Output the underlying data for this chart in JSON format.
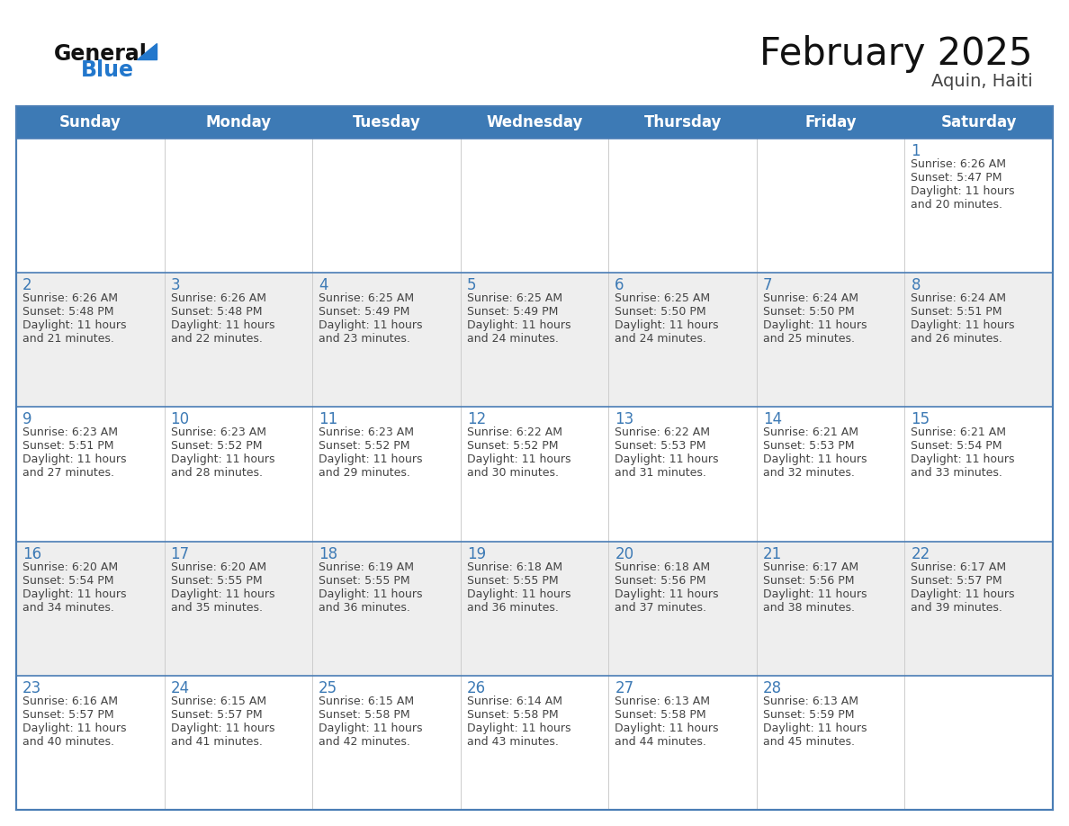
{
  "title": "February 2025",
  "subtitle": "Aquin, Haiti",
  "days_of_week": [
    "Sunday",
    "Monday",
    "Tuesday",
    "Wednesday",
    "Thursday",
    "Friday",
    "Saturday"
  ],
  "header_bg": "#3d7ab5",
  "header_text_color": "#ffffff",
  "cell_bg_odd": "#ffffff",
  "cell_bg_even": "#eeeeee",
  "row_border_color": "#4a7db5",
  "col_border_color": "#cccccc",
  "outer_border_color": "#4a7db5",
  "text_color": "#444444",
  "day_num_color": "#3d7ab5",
  "title_color": "#111111",
  "subtitle_color": "#444444",
  "logo_general_color": "#111111",
  "logo_blue_color": "#2277cc",
  "weeks": [
    [
      {
        "day": null,
        "sunrise": null,
        "sunset": null,
        "daylight": null
      },
      {
        "day": null,
        "sunrise": null,
        "sunset": null,
        "daylight": null
      },
      {
        "day": null,
        "sunrise": null,
        "sunset": null,
        "daylight": null
      },
      {
        "day": null,
        "sunrise": null,
        "sunset": null,
        "daylight": null
      },
      {
        "day": null,
        "sunrise": null,
        "sunset": null,
        "daylight": null
      },
      {
        "day": null,
        "sunrise": null,
        "sunset": null,
        "daylight": null
      },
      {
        "day": 1,
        "sunrise": "6:26 AM",
        "sunset": "5:47 PM",
        "daylight": "11 hours and 20 minutes."
      }
    ],
    [
      {
        "day": 2,
        "sunrise": "6:26 AM",
        "sunset": "5:48 PM",
        "daylight": "11 hours and 21 minutes."
      },
      {
        "day": 3,
        "sunrise": "6:26 AM",
        "sunset": "5:48 PM",
        "daylight": "11 hours and 22 minutes."
      },
      {
        "day": 4,
        "sunrise": "6:25 AM",
        "sunset": "5:49 PM",
        "daylight": "11 hours and 23 minutes."
      },
      {
        "day": 5,
        "sunrise": "6:25 AM",
        "sunset": "5:49 PM",
        "daylight": "11 hours and 24 minutes."
      },
      {
        "day": 6,
        "sunrise": "6:25 AM",
        "sunset": "5:50 PM",
        "daylight": "11 hours and 24 minutes."
      },
      {
        "day": 7,
        "sunrise": "6:24 AM",
        "sunset": "5:50 PM",
        "daylight": "11 hours and 25 minutes."
      },
      {
        "day": 8,
        "sunrise": "6:24 AM",
        "sunset": "5:51 PM",
        "daylight": "11 hours and 26 minutes."
      }
    ],
    [
      {
        "day": 9,
        "sunrise": "6:23 AM",
        "sunset": "5:51 PM",
        "daylight": "11 hours and 27 minutes."
      },
      {
        "day": 10,
        "sunrise": "6:23 AM",
        "sunset": "5:52 PM",
        "daylight": "11 hours and 28 minutes."
      },
      {
        "day": 11,
        "sunrise": "6:23 AM",
        "sunset": "5:52 PM",
        "daylight": "11 hours and 29 minutes."
      },
      {
        "day": 12,
        "sunrise": "6:22 AM",
        "sunset": "5:52 PM",
        "daylight": "11 hours and 30 minutes."
      },
      {
        "day": 13,
        "sunrise": "6:22 AM",
        "sunset": "5:53 PM",
        "daylight": "11 hours and 31 minutes."
      },
      {
        "day": 14,
        "sunrise": "6:21 AM",
        "sunset": "5:53 PM",
        "daylight": "11 hours and 32 minutes."
      },
      {
        "day": 15,
        "sunrise": "6:21 AM",
        "sunset": "5:54 PM",
        "daylight": "11 hours and 33 minutes."
      }
    ],
    [
      {
        "day": 16,
        "sunrise": "6:20 AM",
        "sunset": "5:54 PM",
        "daylight": "11 hours and 34 minutes."
      },
      {
        "day": 17,
        "sunrise": "6:20 AM",
        "sunset": "5:55 PM",
        "daylight": "11 hours and 35 minutes."
      },
      {
        "day": 18,
        "sunrise": "6:19 AM",
        "sunset": "5:55 PM",
        "daylight": "11 hours and 36 minutes."
      },
      {
        "day": 19,
        "sunrise": "6:18 AM",
        "sunset": "5:55 PM",
        "daylight": "11 hours and 36 minutes."
      },
      {
        "day": 20,
        "sunrise": "6:18 AM",
        "sunset": "5:56 PM",
        "daylight": "11 hours and 37 minutes."
      },
      {
        "day": 21,
        "sunrise": "6:17 AM",
        "sunset": "5:56 PM",
        "daylight": "11 hours and 38 minutes."
      },
      {
        "day": 22,
        "sunrise": "6:17 AM",
        "sunset": "5:57 PM",
        "daylight": "11 hours and 39 minutes."
      }
    ],
    [
      {
        "day": 23,
        "sunrise": "6:16 AM",
        "sunset": "5:57 PM",
        "daylight": "11 hours and 40 minutes."
      },
      {
        "day": 24,
        "sunrise": "6:15 AM",
        "sunset": "5:57 PM",
        "daylight": "11 hours and 41 minutes."
      },
      {
        "day": 25,
        "sunrise": "6:15 AM",
        "sunset": "5:58 PM",
        "daylight": "11 hours and 42 minutes."
      },
      {
        "day": 26,
        "sunrise": "6:14 AM",
        "sunset": "5:58 PM",
        "daylight": "11 hours and 43 minutes."
      },
      {
        "day": 27,
        "sunrise": "6:13 AM",
        "sunset": "5:58 PM",
        "daylight": "11 hours and 44 minutes."
      },
      {
        "day": 28,
        "sunrise": "6:13 AM",
        "sunset": "5:59 PM",
        "daylight": "11 hours and 45 minutes."
      },
      {
        "day": null,
        "sunrise": null,
        "sunset": null,
        "daylight": null
      }
    ]
  ]
}
